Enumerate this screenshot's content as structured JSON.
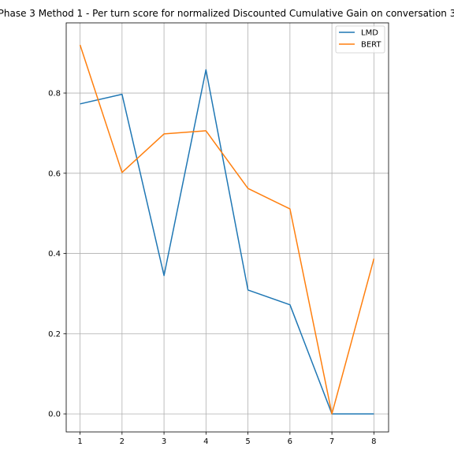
{
  "chart_data": {
    "type": "line",
    "title": "Phase 3 Method 1 - Per turn score for normalized Discounted Cumulative Gain on conversation 3",
    "xlabel": "",
    "ylabel": "",
    "x": [
      1,
      2,
      3,
      4,
      5,
      6,
      7,
      8
    ],
    "xticks": [
      "1",
      "2",
      "3",
      "4",
      "5",
      "6",
      "7",
      "8"
    ],
    "yticks": [
      "0.0",
      "0.2",
      "0.4",
      "0.6",
      "0.8"
    ],
    "xlim": [
      0.67,
      8.35
    ],
    "ylim": [
      -0.045,
      0.975
    ],
    "grid": true,
    "legend_position": "top-right",
    "series": [
      {
        "name": "LMD",
        "color": "#1f77b4",
        "values": [
          0.773,
          0.797,
          0.345,
          0.858,
          0.309,
          0.272,
          0.0,
          0.0
        ]
      },
      {
        "name": "BERT",
        "color": "#ff7f0e",
        "values": [
          0.92,
          0.602,
          0.698,
          0.706,
          0.562,
          0.511,
          0.0,
          0.387
        ]
      }
    ]
  }
}
